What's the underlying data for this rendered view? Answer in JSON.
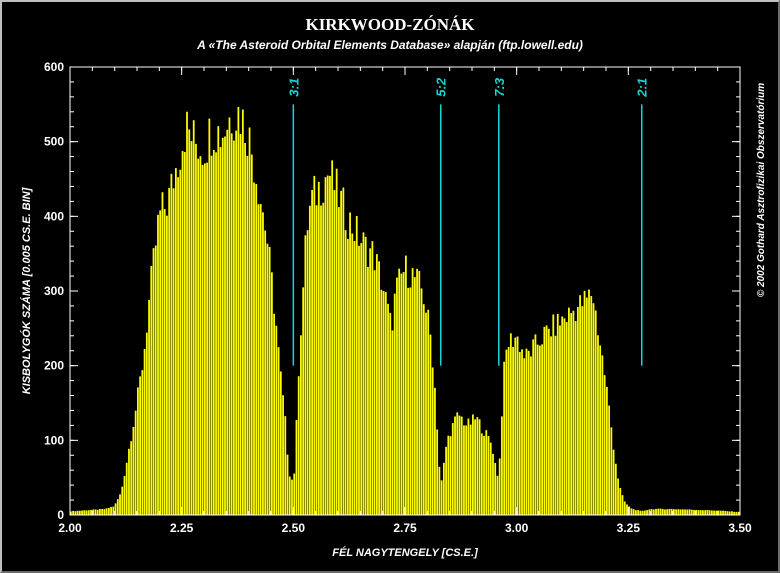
{
  "chart_data": {
    "type": "bar",
    "title": "KIRKWOOD-ZÓNÁK",
    "subtitle": "A «The Asteroid Orbital Elements Database» alapján (ftp.lowell.edu)",
    "xlabel": "FÉL NAGYTENGELY [CS.E.]",
    "ylabel": "KISBOLYGÓK SZÁMA [0.005 CS.E. BIN]",
    "credit": "© 2002 Gothard Asztrofizikai Obszervatórium",
    "xlim": [
      2.0,
      3.5
    ],
    "ylim": [
      0,
      600
    ],
    "bin_width": 0.005,
    "x_ticks": [
      "2.00",
      "2.25",
      "2.50",
      "2.75",
      "3.00",
      "3.25",
      "3.50"
    ],
    "y_ticks": [
      "0",
      "100",
      "200",
      "300",
      "400",
      "500",
      "600"
    ],
    "bar_color": "#ffff00",
    "resonance_color": "#19d6d6",
    "resonances": [
      {
        "label": "3:1",
        "a": 2.5,
        "ybottom": 200,
        "ytop": 550
      },
      {
        "label": "5:2",
        "a": 2.83,
        "ybottom": 200,
        "ytop": 550
      },
      {
        "label": "7:3",
        "a": 2.96,
        "ybottom": 200,
        "ytop": 550
      },
      {
        "label": "2:1",
        "a": 3.28,
        "ybottom": 200,
        "ytop": 550
      }
    ],
    "profile": [
      [
        2.0,
        5
      ],
      [
        2.08,
        8
      ],
      [
        2.1,
        12
      ],
      [
        2.115,
        30
      ],
      [
        2.13,
        80
      ],
      [
        2.15,
        150
      ],
      [
        2.165,
        210
      ],
      [
        2.18,
        300
      ],
      [
        2.2,
        400
      ],
      [
        2.22,
        420
      ],
      [
        2.24,
        470
      ],
      [
        2.26,
        520
      ],
      [
        2.28,
        500
      ],
      [
        2.3,
        490
      ],
      [
        2.32,
        520
      ],
      [
        2.34,
        510
      ],
      [
        2.36,
        535
      ],
      [
        2.38,
        540
      ],
      [
        2.4,
        510
      ],
      [
        2.42,
        450
      ],
      [
        2.44,
        380
      ],
      [
        2.46,
        270
      ],
      [
        2.47,
        200
      ],
      [
        2.48,
        140
      ],
      [
        2.485,
        110
      ],
      [
        2.49,
        60
      ],
      [
        2.495,
        50
      ],
      [
        2.5,
        45
      ],
      [
        2.505,
        70
      ],
      [
        2.51,
        170
      ],
      [
        2.52,
        280
      ],
      [
        2.53,
        380
      ],
      [
        2.54,
        420
      ],
      [
        2.56,
        440
      ],
      [
        2.58,
        460
      ],
      [
        2.6,
        430
      ],
      [
        2.62,
        400
      ],
      [
        2.64,
        380
      ],
      [
        2.66,
        360
      ],
      [
        2.68,
        350
      ],
      [
        2.7,
        310
      ],
      [
        2.71,
        280
      ],
      [
        2.72,
        250
      ],
      [
        2.73,
        300
      ],
      [
        2.75,
        330
      ],
      [
        2.77,
        320
      ],
      [
        2.79,
        300
      ],
      [
        2.8,
        270
      ],
      [
        2.81,
        230
      ],
      [
        2.82,
        150
      ],
      [
        2.825,
        90
      ],
      [
        2.83,
        40
      ],
      [
        2.835,
        50
      ],
      [
        2.84,
        85
      ],
      [
        2.85,
        110
      ],
      [
        2.87,
        135
      ],
      [
        2.89,
        120
      ],
      [
        2.91,
        130
      ],
      [
        2.93,
        110
      ],
      [
        2.945,
        95
      ],
      [
        2.955,
        60
      ],
      [
        2.96,
        50
      ],
      [
        2.965,
        100
      ],
      [
        2.97,
        180
      ],
      [
        2.98,
        230
      ],
      [
        3.0,
        240
      ],
      [
        3.02,
        210
      ],
      [
        3.04,
        225
      ],
      [
        3.06,
        240
      ],
      [
        3.08,
        250
      ],
      [
        3.1,
        260
      ],
      [
        3.12,
        270
      ],
      [
        3.14,
        280
      ],
      [
        3.16,
        290
      ],
      [
        3.17,
        300
      ],
      [
        3.18,
        260
      ],
      [
        3.19,
        220
      ],
      [
        3.2,
        180
      ],
      [
        3.21,
        130
      ],
      [
        3.22,
        80
      ],
      [
        3.23,
        40
      ],
      [
        3.24,
        20
      ],
      [
        3.25,
        12
      ],
      [
        3.26,
        8
      ],
      [
        3.28,
        5
      ],
      [
        3.3,
        8
      ],
      [
        3.35,
        8
      ],
      [
        3.4,
        7
      ],
      [
        3.45,
        6
      ],
      [
        3.5,
        4
      ]
    ],
    "grid": false,
    "legend": "none"
  }
}
